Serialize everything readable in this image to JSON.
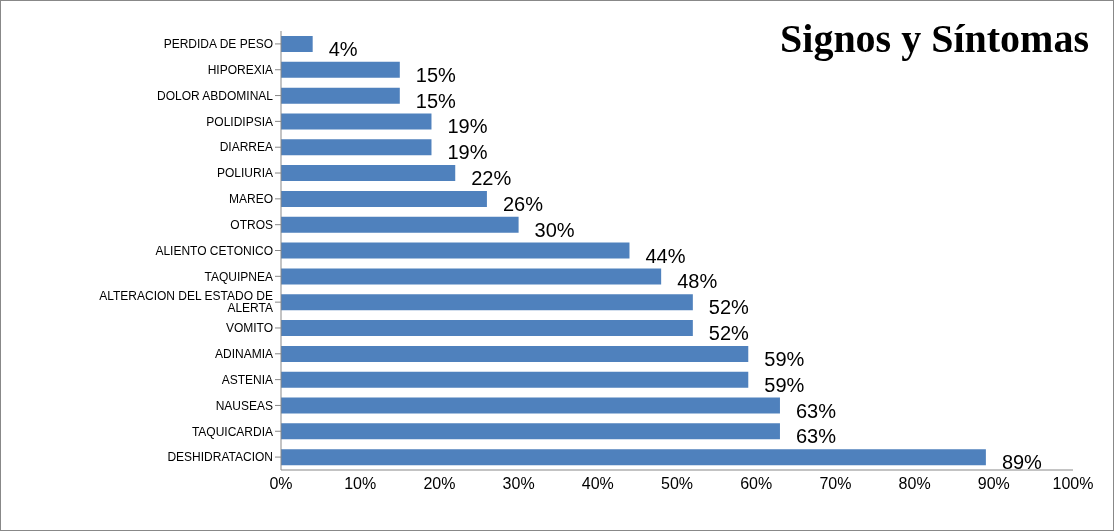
{
  "chart_data": {
    "type": "bar",
    "orientation": "horizontal",
    "title": "Signos y Síntomas",
    "categories": [
      "PERDIDA DE PESO",
      "HIPOREXIA",
      "DOLOR ABDOMINAL",
      "POLIDIPSIA",
      "DIARREA",
      "POLIURIA",
      "MAREO",
      "OTROS",
      "ALIENTO CETONICO",
      "TAQUIPNEA",
      "ALTERACION DEL ESTADO DE ALERTA",
      "VOMITO",
      "ADINAMIA",
      "ASTENIA",
      "NAUSEAS",
      "TAQUICARDIA",
      "DESHIDRATACION"
    ],
    "values": [
      4,
      15,
      15,
      19,
      19,
      22,
      26,
      30,
      44,
      48,
      52,
      52,
      59,
      59,
      63,
      63,
      89
    ],
    "value_labels": [
      "4%",
      "15%",
      "15%",
      "19%",
      "19%",
      "22%",
      "26%",
      "30%",
      "44%",
      "48%",
      "52%",
      "52%",
      "59%",
      "59%",
      "63%",
      "63%",
      "89%"
    ],
    "color": "#4f81bd",
    "xlim": [
      0,
      100
    ],
    "xticks": [
      {
        "value": 0,
        "label": "0%"
      },
      {
        "value": 10,
        "label": "10%"
      },
      {
        "value": 20,
        "label": "20%"
      },
      {
        "value": 30,
        "label": "30%"
      },
      {
        "value": 40,
        "label": "40%"
      },
      {
        "value": 50,
        "label": "50%"
      },
      {
        "value": 60,
        "label": "60%"
      },
      {
        "value": 70,
        "label": "70%"
      },
      {
        "value": 80,
        "label": "80%"
      },
      {
        "value": 90,
        "label": "90%"
      },
      {
        "value": 100,
        "label": "100%"
      }
    ],
    "grid": false,
    "legend": false
  }
}
